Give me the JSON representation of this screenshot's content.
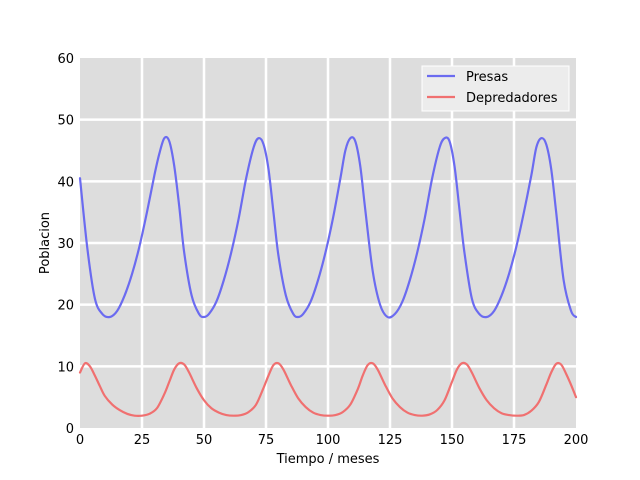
{
  "chart_data": {
    "type": "line",
    "xlabel": "Tiempo / meses",
    "ylabel": "Poblacion",
    "xlim": [
      0,
      200
    ],
    "ylim": [
      0,
      60
    ],
    "xticks": [
      0,
      25,
      50,
      75,
      100,
      125,
      150,
      175,
      200
    ],
    "yticks": [
      0,
      10,
      20,
      30,
      40,
      50,
      60
    ],
    "grid": true,
    "legend_position": "top-right",
    "series": [
      {
        "name": "Presas",
        "color": "#6b6bf0",
        "x": [
          0,
          3,
          6,
          9,
          12,
          15,
          18,
          21,
          24,
          27,
          30,
          32,
          34,
          36,
          38,
          40,
          42,
          45,
          48,
          50,
          52,
          55,
          58,
          61,
          64,
          67,
          70,
          72,
          74,
          76,
          78,
          80,
          83,
          86,
          88,
          90,
          93,
          96,
          99,
          102,
          105,
          107,
          109,
          111,
          113,
          115,
          118,
          121,
          124,
          127,
          130,
          133,
          136,
          139,
          142,
          145,
          147,
          149,
          151,
          153,
          155,
          158,
          161,
          164,
          167,
          170,
          173,
          176,
          179,
          182,
          184,
          186,
          188,
          190,
          192,
          195,
          198,
          200
        ],
        "y": [
          40.5,
          29,
          21,
          18.5,
          18,
          19,
          21.5,
          25,
          29.5,
          35,
          41,
          44.5,
          47,
          46.5,
          42.5,
          36,
          28.5,
          21.5,
          18.5,
          18,
          18.5,
          20.5,
          24,
          28.5,
          34,
          40.5,
          45.5,
          47,
          46,
          42,
          35,
          28,
          21.5,
          18.5,
          18,
          18.5,
          20.5,
          24,
          28.5,
          34,
          40.5,
          45,
          47,
          46.5,
          42.5,
          35.5,
          25.5,
          20,
          18,
          18.5,
          20.5,
          24,
          28.5,
          34,
          40.5,
          45.5,
          47,
          46.5,
          42.5,
          35.5,
          28.5,
          21,
          18.5,
          18,
          19,
          21.5,
          25,
          29.5,
          35,
          41,
          45.5,
          47,
          46,
          42,
          35,
          24,
          19,
          18
        ]
      },
      {
        "name": "Depredadores",
        "color": "#f07070",
        "x": [
          0,
          2,
          4,
          6,
          8,
          10,
          13,
          16,
          19,
          22,
          25,
          28,
          31,
          34,
          36,
          38,
          40,
          42,
          44,
          47,
          50,
          53,
          56,
          59,
          62,
          65,
          68,
          71,
          74,
          76,
          78,
          80,
          82,
          85,
          88,
          91,
          94,
          97,
          100,
          103,
          106,
          109,
          112,
          114,
          116,
          118,
          120,
          123,
          126,
          129,
          132,
          135,
          138,
          141,
          144,
          147,
          150,
          152,
          154,
          156,
          158,
          161,
          164,
          167,
          170,
          173,
          176,
          179,
          182,
          185,
          188,
          190,
          192,
          194,
          196,
          198,
          200
        ],
        "y": [
          9,
          10.5,
          10,
          8.5,
          6.8,
          5.2,
          3.8,
          2.9,
          2.3,
          2,
          2,
          2.3,
          3.2,
          5.5,
          7.5,
          9.5,
          10.5,
          10.3,
          9,
          6.5,
          4.5,
          3.2,
          2.5,
          2.1,
          2,
          2.1,
          2.6,
          3.8,
          6.5,
          8.5,
          10.2,
          10.5,
          9.5,
          7,
          4.8,
          3.4,
          2.5,
          2.1,
          2,
          2.1,
          2.6,
          3.8,
          6.3,
          8.5,
          10.2,
          10.5,
          9.5,
          7,
          4.8,
          3.4,
          2.5,
          2.1,
          2,
          2.2,
          2.9,
          4.5,
          7.5,
          9.5,
          10.5,
          10.3,
          9,
          6.5,
          4.5,
          3.2,
          2.4,
          2.1,
          2,
          2.1,
          2.8,
          4.2,
          7,
          9,
          10.4,
          10.3,
          8.8,
          7,
          5
        ]
      }
    ]
  }
}
